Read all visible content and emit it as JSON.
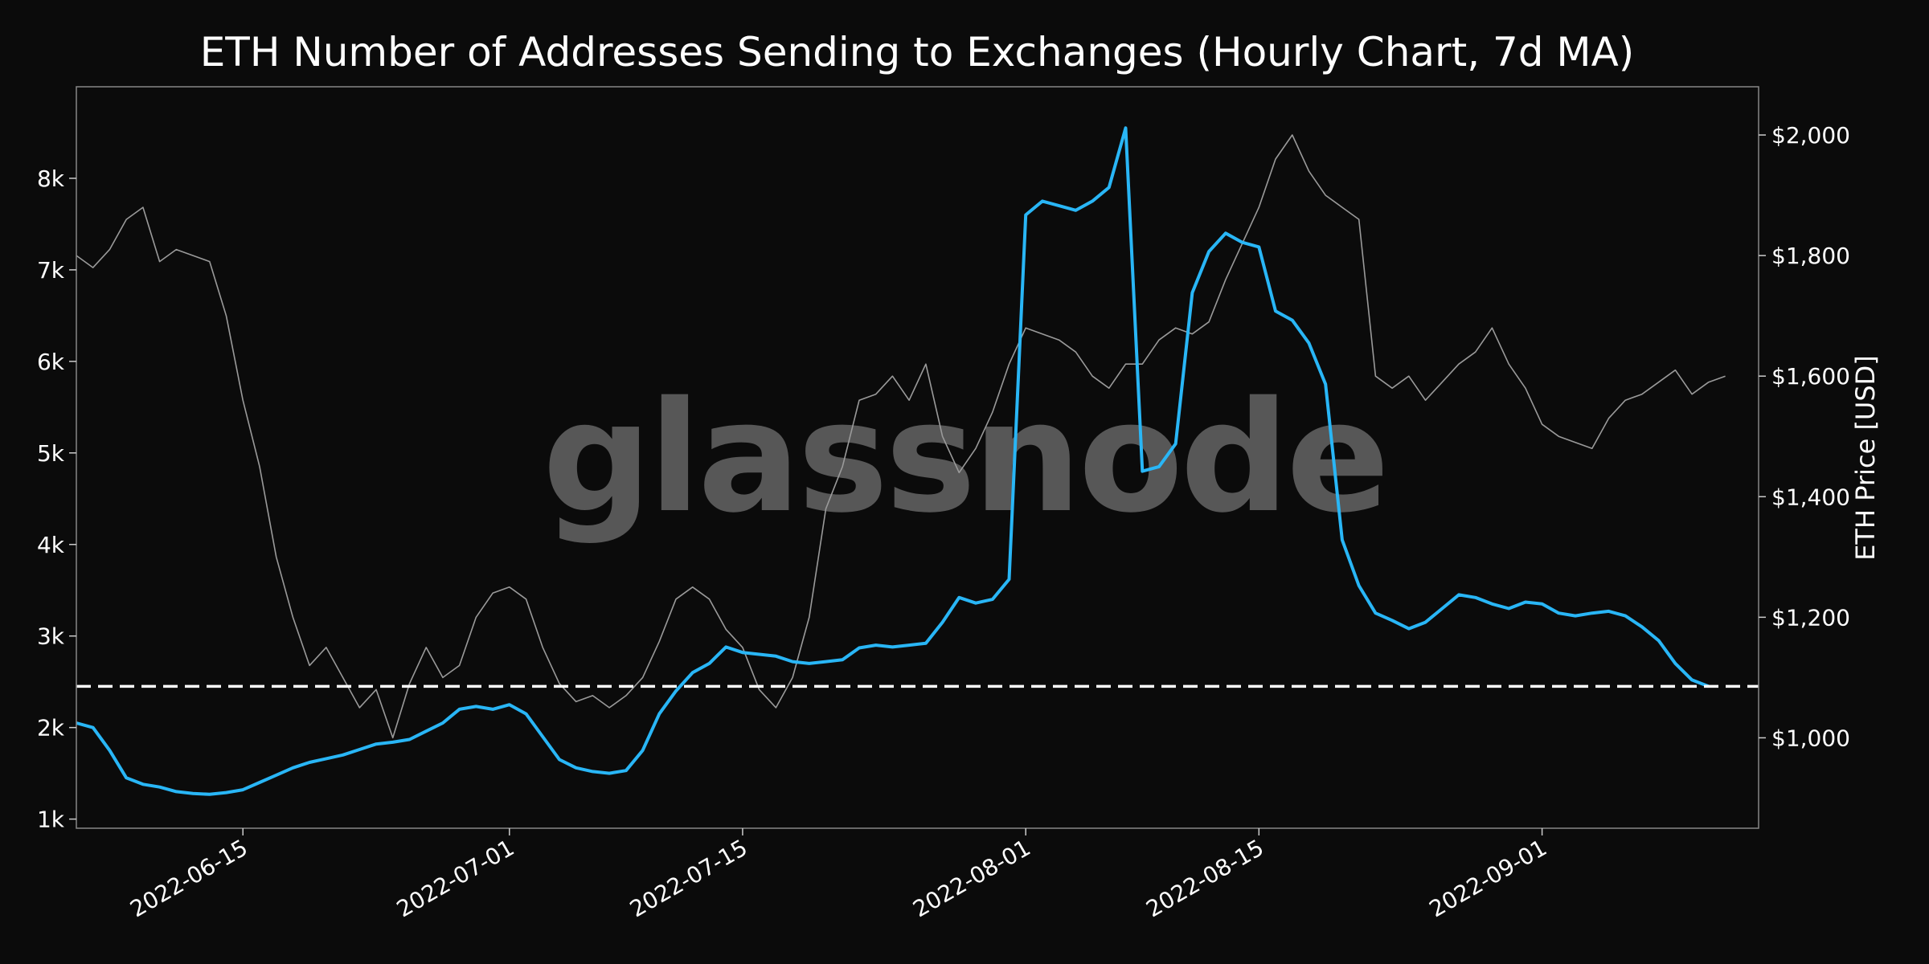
{
  "chart_data": {
    "type": "line",
    "title": "ETH Number of Addresses Sending to Exchanges (Hourly Chart, 7d MA)",
    "watermark": "glassnode",
    "xlabel": "",
    "ylabel_left": "",
    "ylabel_right": "ETH Price [USD]",
    "x_range": [
      "2022-06-05",
      "2022-09-14"
    ],
    "x_ticks": [
      "2022-06-15",
      "2022-07-01",
      "2022-07-15",
      "2022-08-01",
      "2022-08-15",
      "2022-09-01"
    ],
    "y_left_range": [
      900,
      9000
    ],
    "y_left_ticks": [
      1000,
      2000,
      3000,
      4000,
      5000,
      6000,
      7000,
      8000
    ],
    "y_left_tick_labels": [
      "1k",
      "2k",
      "3k",
      "4k",
      "5k",
      "6k",
      "7k",
      "8k"
    ],
    "y_right_range": [
      850,
      2080
    ],
    "y_right_ticks": [
      1000,
      1200,
      1400,
      1600,
      1800,
      2000
    ],
    "y_right_tick_labels": [
      "$1,000",
      "$1,200",
      "$1,400",
      "$1,600",
      "$1,800",
      "$2,000"
    ],
    "reference_line": {
      "axis": "left",
      "value": 2450,
      "style": "dashed",
      "color": "#ffffff"
    },
    "grid": false,
    "series": [
      {
        "axis": "left",
        "color": "#29b6f6",
        "points": [
          [
            "2022-06-05",
            2050
          ],
          [
            "2022-06-06",
            2000
          ],
          [
            "2022-06-07",
            1750
          ],
          [
            "2022-06-08",
            1450
          ],
          [
            "2022-06-09",
            1380
          ],
          [
            "2022-06-10",
            1350
          ],
          [
            "2022-06-11",
            1300
          ],
          [
            "2022-06-12",
            1280
          ],
          [
            "2022-06-13",
            1270
          ],
          [
            "2022-06-14",
            1290
          ],
          [
            "2022-06-15",
            1320
          ],
          [
            "2022-06-16",
            1400
          ],
          [
            "2022-06-17",
            1480
          ],
          [
            "2022-06-18",
            1560
          ],
          [
            "2022-06-19",
            1620
          ],
          [
            "2022-06-20",
            1660
          ],
          [
            "2022-06-21",
            1700
          ],
          [
            "2022-06-22",
            1760
          ],
          [
            "2022-06-23",
            1820
          ],
          [
            "2022-06-24",
            1840
          ],
          [
            "2022-06-25",
            1870
          ],
          [
            "2022-06-26",
            1960
          ],
          [
            "2022-06-27",
            2050
          ],
          [
            "2022-06-28",
            2200
          ],
          [
            "2022-06-29",
            2230
          ],
          [
            "2022-06-30",
            2200
          ],
          [
            "2022-07-01",
            2250
          ],
          [
            "2022-07-02",
            2150
          ],
          [
            "2022-07-03",
            1900
          ],
          [
            "2022-07-04",
            1650
          ],
          [
            "2022-07-05",
            1560
          ],
          [
            "2022-07-06",
            1520
          ],
          [
            "2022-07-07",
            1500
          ],
          [
            "2022-07-08",
            1530
          ],
          [
            "2022-07-09",
            1750
          ],
          [
            "2022-07-10",
            2150
          ],
          [
            "2022-07-11",
            2400
          ],
          [
            "2022-07-12",
            2600
          ],
          [
            "2022-07-13",
            2700
          ],
          [
            "2022-07-14",
            2880
          ],
          [
            "2022-07-15",
            2820
          ],
          [
            "2022-07-16",
            2800
          ],
          [
            "2022-07-17",
            2780
          ],
          [
            "2022-07-18",
            2720
          ],
          [
            "2022-07-19",
            2700
          ],
          [
            "2022-07-20",
            2720
          ],
          [
            "2022-07-21",
            2740
          ],
          [
            "2022-07-22",
            2870
          ],
          [
            "2022-07-23",
            2900
          ],
          [
            "2022-07-24",
            2880
          ],
          [
            "2022-07-25",
            2900
          ],
          [
            "2022-07-26",
            2920
          ],
          [
            "2022-07-27",
            3150
          ],
          [
            "2022-07-28",
            3420
          ],
          [
            "2022-07-29",
            3360
          ],
          [
            "2022-07-30",
            3400
          ],
          [
            "2022-07-31",
            3620
          ],
          [
            "2022-08-01",
            7600
          ],
          [
            "2022-08-02",
            7750
          ],
          [
            "2022-08-03",
            7700
          ],
          [
            "2022-08-04",
            7650
          ],
          [
            "2022-08-05",
            7750
          ],
          [
            "2022-08-06",
            7900
          ],
          [
            "2022-08-07",
            8550
          ],
          [
            "2022-08-08",
            4800
          ],
          [
            "2022-08-09",
            4850
          ],
          [
            "2022-08-10",
            5100
          ],
          [
            "2022-08-11",
            6750
          ],
          [
            "2022-08-12",
            7200
          ],
          [
            "2022-08-13",
            7400
          ],
          [
            "2022-08-14",
            7300
          ],
          [
            "2022-08-15",
            7250
          ],
          [
            "2022-08-16",
            6550
          ],
          [
            "2022-08-17",
            6450
          ],
          [
            "2022-08-18",
            6200
          ],
          [
            "2022-08-19",
            5750
          ],
          [
            "2022-08-20",
            4050
          ],
          [
            "2022-08-21",
            3550
          ],
          [
            "2022-08-22",
            3250
          ],
          [
            "2022-08-23",
            3170
          ],
          [
            "2022-08-24",
            3080
          ],
          [
            "2022-08-25",
            3150
          ],
          [
            "2022-08-26",
            3300
          ],
          [
            "2022-08-27",
            3450
          ],
          [
            "2022-08-28",
            3420
          ],
          [
            "2022-08-29",
            3350
          ],
          [
            "2022-08-30",
            3300
          ],
          [
            "2022-08-31",
            3370
          ],
          [
            "2022-09-01",
            3350
          ],
          [
            "2022-09-02",
            3250
          ],
          [
            "2022-09-03",
            3220
          ],
          [
            "2022-09-04",
            3250
          ],
          [
            "2022-09-05",
            3270
          ],
          [
            "2022-09-06",
            3220
          ],
          [
            "2022-09-07",
            3100
          ],
          [
            "2022-09-08",
            2950
          ],
          [
            "2022-09-09",
            2700
          ],
          [
            "2022-09-10",
            2520
          ],
          [
            "2022-09-11",
            2450
          ]
        ]
      },
      {
        "axis": "right",
        "color": "#9a9a9a",
        "points": [
          [
            "2022-06-05",
            1800
          ],
          [
            "2022-06-06",
            1780
          ],
          [
            "2022-06-07",
            1810
          ],
          [
            "2022-06-08",
            1860
          ],
          [
            "2022-06-09",
            1880
          ],
          [
            "2022-06-10",
            1790
          ],
          [
            "2022-06-11",
            1810
          ],
          [
            "2022-06-12",
            1800
          ],
          [
            "2022-06-13",
            1790
          ],
          [
            "2022-06-14",
            1700
          ],
          [
            "2022-06-15",
            1560
          ],
          [
            "2022-06-16",
            1450
          ],
          [
            "2022-06-17",
            1300
          ],
          [
            "2022-06-18",
            1200
          ],
          [
            "2022-06-19",
            1120
          ],
          [
            "2022-06-20",
            1150
          ],
          [
            "2022-06-21",
            1100
          ],
          [
            "2022-06-22",
            1050
          ],
          [
            "2022-06-23",
            1080
          ],
          [
            "2022-06-24",
            1000
          ],
          [
            "2022-06-25",
            1090
          ],
          [
            "2022-06-26",
            1150
          ],
          [
            "2022-06-27",
            1100
          ],
          [
            "2022-06-28",
            1120
          ],
          [
            "2022-06-29",
            1200
          ],
          [
            "2022-06-30",
            1240
          ],
          [
            "2022-07-01",
            1250
          ],
          [
            "2022-07-02",
            1230
          ],
          [
            "2022-07-03",
            1150
          ],
          [
            "2022-07-04",
            1090
          ],
          [
            "2022-07-05",
            1060
          ],
          [
            "2022-07-06",
            1070
          ],
          [
            "2022-07-07",
            1050
          ],
          [
            "2022-07-08",
            1070
          ],
          [
            "2022-07-09",
            1100
          ],
          [
            "2022-07-10",
            1160
          ],
          [
            "2022-07-11",
            1230
          ],
          [
            "2022-07-12",
            1250
          ],
          [
            "2022-07-13",
            1230
          ],
          [
            "2022-07-14",
            1180
          ],
          [
            "2022-07-15",
            1150
          ],
          [
            "2022-07-16",
            1080
          ],
          [
            "2022-07-17",
            1050
          ],
          [
            "2022-07-18",
            1100
          ],
          [
            "2022-07-19",
            1200
          ],
          [
            "2022-07-20",
            1380
          ],
          [
            "2022-07-21",
            1450
          ],
          [
            "2022-07-22",
            1560
          ],
          [
            "2022-07-23",
            1570
          ],
          [
            "2022-07-24",
            1600
          ],
          [
            "2022-07-25",
            1560
          ],
          [
            "2022-07-26",
            1620
          ],
          [
            "2022-07-27",
            1500
          ],
          [
            "2022-07-28",
            1440
          ],
          [
            "2022-07-29",
            1480
          ],
          [
            "2022-07-30",
            1540
          ],
          [
            "2022-07-31",
            1620
          ],
          [
            "2022-08-01",
            1680
          ],
          [
            "2022-08-02",
            1670
          ],
          [
            "2022-08-03",
            1660
          ],
          [
            "2022-08-04",
            1640
          ],
          [
            "2022-08-05",
            1600
          ],
          [
            "2022-08-06",
            1580
          ],
          [
            "2022-08-07",
            1620
          ],
          [
            "2022-08-08",
            1620
          ],
          [
            "2022-08-09",
            1660
          ],
          [
            "2022-08-10",
            1680
          ],
          [
            "2022-08-11",
            1670
          ],
          [
            "2022-08-12",
            1690
          ],
          [
            "2022-08-13",
            1760
          ],
          [
            "2022-08-14",
            1820
          ],
          [
            "2022-08-15",
            1880
          ],
          [
            "2022-08-16",
            1960
          ],
          [
            "2022-08-17",
            2000
          ],
          [
            "2022-08-18",
            1940
          ],
          [
            "2022-08-19",
            1900
          ],
          [
            "2022-08-20",
            1880
          ],
          [
            "2022-08-21",
            1860
          ],
          [
            "2022-08-22",
            1600
          ],
          [
            "2022-08-23",
            1580
          ],
          [
            "2022-08-24",
            1600
          ],
          [
            "2022-08-25",
            1560
          ],
          [
            "2022-08-26",
            1590
          ],
          [
            "2022-08-27",
            1620
          ],
          [
            "2022-08-28",
            1640
          ],
          [
            "2022-08-29",
            1680
          ],
          [
            "2022-08-30",
            1620
          ],
          [
            "2022-08-31",
            1580
          ],
          [
            "2022-09-01",
            1520
          ],
          [
            "2022-09-02",
            1500
          ],
          [
            "2022-09-03",
            1490
          ],
          [
            "2022-09-04",
            1480
          ],
          [
            "2022-09-05",
            1530
          ],
          [
            "2022-09-06",
            1560
          ],
          [
            "2022-09-07",
            1570
          ],
          [
            "2022-09-08",
            1590
          ],
          [
            "2022-09-09",
            1610
          ],
          [
            "2022-09-10",
            1570
          ],
          [
            "2022-09-11",
            1590
          ],
          [
            "2022-09-12",
            1600
          ]
        ]
      }
    ]
  }
}
